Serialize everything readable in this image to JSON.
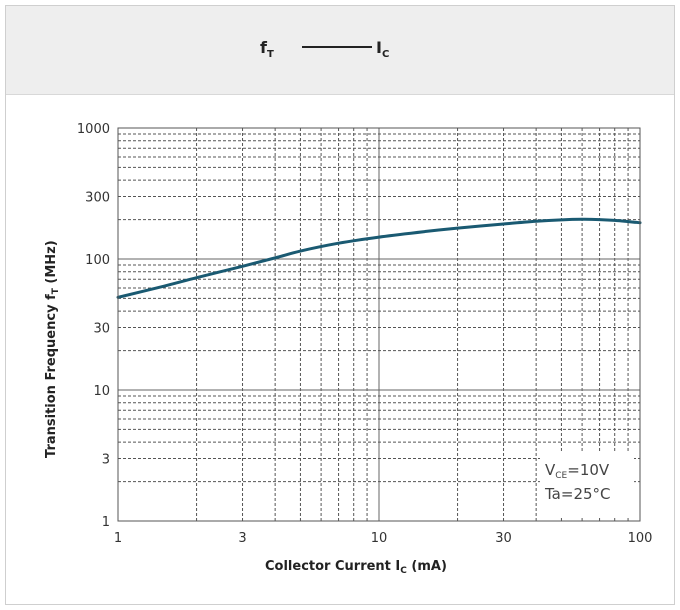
{
  "chart_data": {
    "type": "line",
    "title": {
      "left_symbol": "f",
      "left_sub": "T",
      "right_symbol": "I",
      "right_sub": "C"
    },
    "xlabel": {
      "text": "Collector Current  I",
      "sub": "C",
      "unit": " (mA)"
    },
    "ylabel": {
      "text": "Transition Frequency  f",
      "sub": "T",
      "unit": " (MHz)"
    },
    "x_scale": "log",
    "y_scale": "log",
    "xlim": [
      1,
      100
    ],
    "ylim": [
      1,
      1000
    ],
    "x_ticks": [
      1,
      3,
      10,
      30,
      100
    ],
    "y_ticks": [
      1,
      3,
      10,
      30,
      100,
      300,
      1000
    ],
    "grid": true,
    "annotations": {
      "line1": {
        "main": "V",
        "sub": "CE",
        "rest": "=10V"
      },
      "line2": "Ta=25°C"
    },
    "series": [
      {
        "color": "#1a5a72",
        "x": [
          1,
          1.5,
          2,
          3,
          4,
          5,
          7,
          10,
          15,
          20,
          30,
          40,
          50,
          60,
          70,
          80,
          100
        ],
        "y": [
          51,
          62,
          72,
          88,
          102,
          115,
          132,
          147,
          162,
          172,
          185,
          194,
          199,
          201,
          200,
          197,
          189
        ]
      }
    ]
  }
}
